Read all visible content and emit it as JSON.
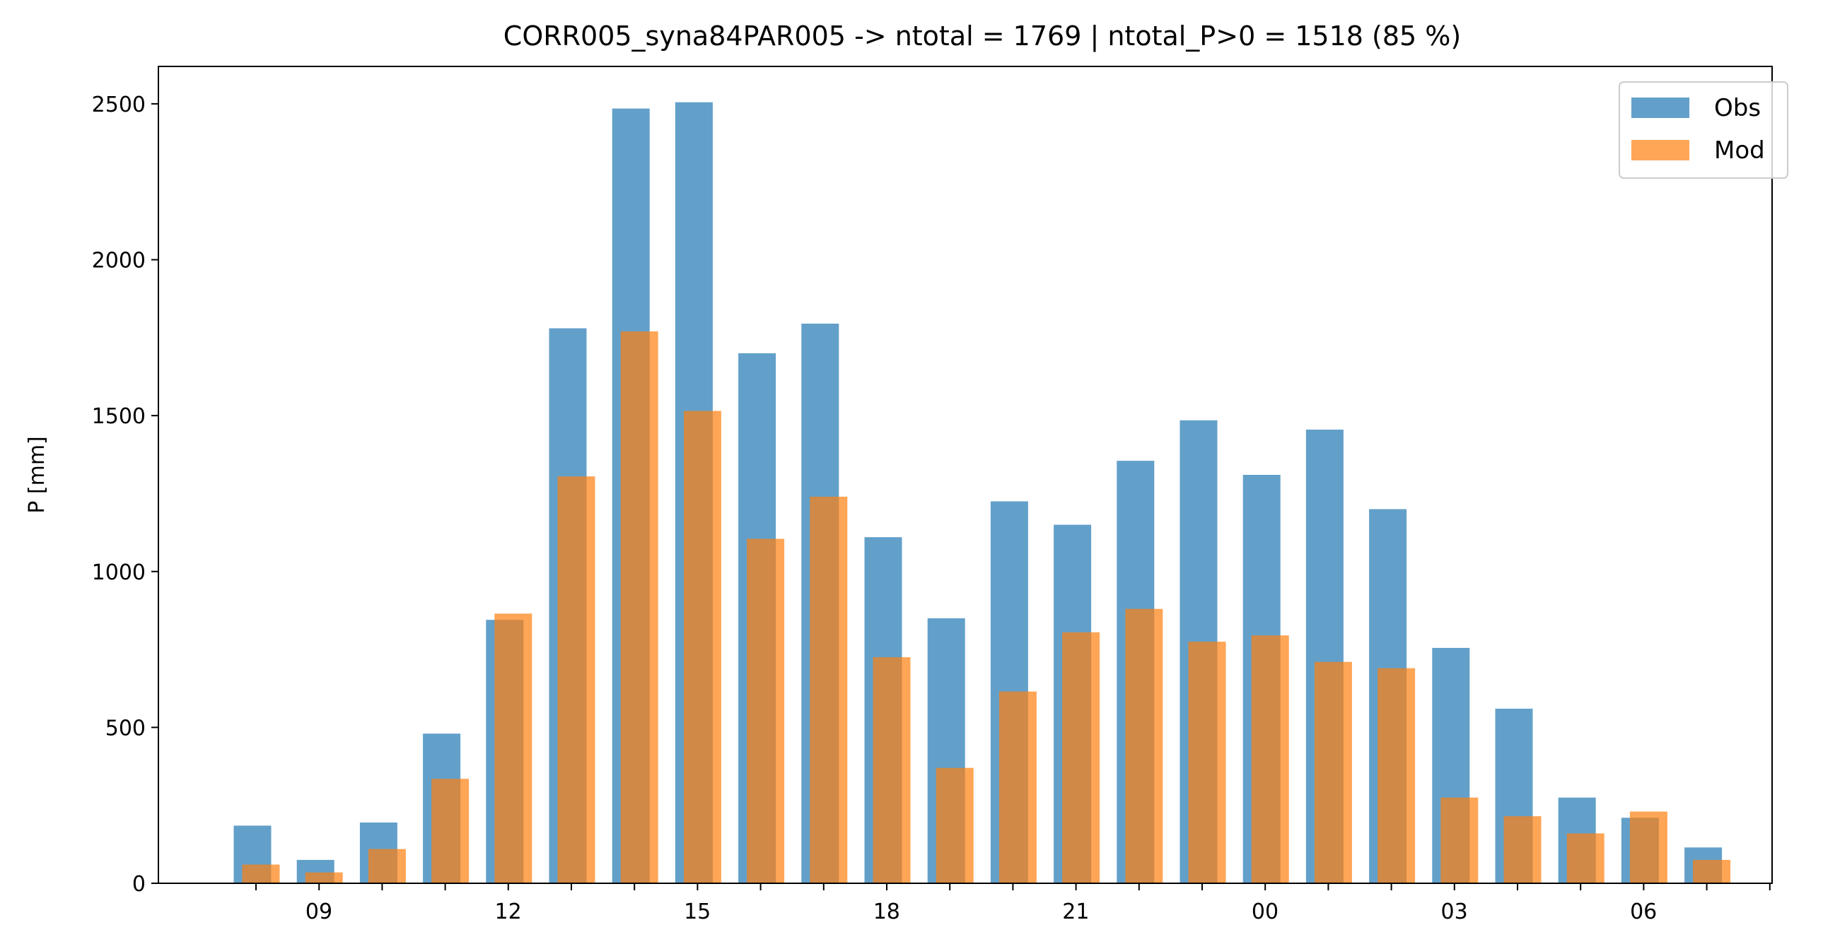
{
  "chart_data": {
    "type": "bar",
    "title": "CORR005_syna84PAR005 -> ntotal = 1769 | ntotal_P>0 = 1518 (85 %)",
    "xlabel": "",
    "ylabel": "P [mm]",
    "ylim": [
      0,
      2620
    ],
    "yticks": [
      0,
      500,
      1000,
      1500,
      2000,
      2500
    ],
    "categories": [
      "08",
      "09",
      "10",
      "11",
      "12",
      "13",
      "14",
      "15",
      "16",
      "17",
      "18",
      "19",
      "20",
      "21",
      "22",
      "23",
      "00",
      "01",
      "02",
      "03",
      "04",
      "05",
      "06",
      "07"
    ],
    "xtick_labels": [
      {
        "label": "09",
        "index": 1
      },
      {
        "label": "12",
        "index": 4
      },
      {
        "label": "15",
        "index": 7
      },
      {
        "label": "18",
        "index": 10
      },
      {
        "label": "21",
        "index": 13
      },
      {
        "label": "00",
        "index": 16
      },
      {
        "label": "03",
        "index": 19
      },
      {
        "label": "06",
        "index": 22
      }
    ],
    "series": [
      {
        "name": "Obs",
        "color": "#1f77b4",
        "opacity": 0.7,
        "values": [
          185,
          75,
          195,
          480,
          845,
          1780,
          2485,
          2505,
          1700,
          1795,
          1110,
          850,
          1225,
          1150,
          1355,
          1485,
          1310,
          1455,
          1200,
          755,
          560,
          275,
          210,
          115
        ]
      },
      {
        "name": "Mod",
        "color": "#ff7f0e",
        "opacity": 0.7,
        "values": [
          60,
          35,
          110,
          335,
          865,
          1305,
          1770,
          1515,
          1105,
          1240,
          725,
          370,
          615,
          805,
          880,
          775,
          795,
          710,
          690,
          275,
          215,
          160,
          230,
          75
        ]
      }
    ],
    "legend_position": "top-right",
    "grid": false
  }
}
